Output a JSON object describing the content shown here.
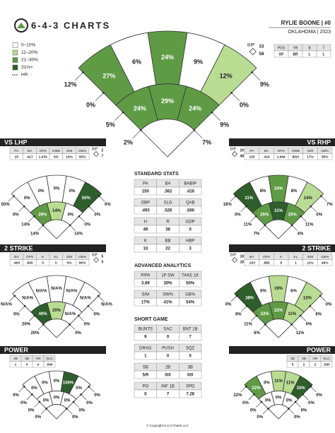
{
  "header": {
    "logo": "6-4-3 CHARTS",
    "player": "RYLIE BOONE | #0",
    "team": "OKLAHOMA | 2023"
  },
  "legend": [
    {
      "label": "0–10%",
      "color": "#ffffff"
    },
    {
      "label": "11–20%",
      "color": "#b9dc93"
    },
    {
      "label": "21–30%",
      "color": "#5f9b45"
    },
    {
      "label": "31%+",
      "color": "#2e5e2b"
    },
    {
      "label": "HR"
    }
  ],
  "bip_label": "BIP",
  "bip": [
    "33",
    "58"
  ],
  "profile": {
    "headers": [
      "POS",
      "YR",
      "B",
      "T"
    ],
    "values": [
      "OF",
      "BR",
      "L",
      "L"
    ]
  },
  "spray": {
    "outer": [
      "27%",
      "6%",
      "24%",
      "9%",
      "12%"
    ],
    "outer_colors": [
      "#5f9b45",
      "#ffffff",
      "#5f9b45",
      "#ffffff",
      "#b9dc93"
    ],
    "inner": [
      "24%",
      "29%",
      "24%"
    ],
    "inner_colors": [
      "#5f9b45",
      "#5f9b45",
      "#5f9b45"
    ],
    "ground": [
      "12%",
      "0%",
      "5%",
      "2%",
      "7%",
      "9%",
      "0%",
      "9%"
    ]
  },
  "panels": [
    {
      "title": "VS LHP",
      "bip": [
        "2",
        "7"
      ],
      "headers": [
        "PA",
        "BA",
        "OPS",
        "K/BB",
        "S/M",
        "GB%"
      ],
      "values": [
        "15",
        ".417",
        "1.033",
        "0/2",
        "14%",
        "55%"
      ],
      "spray": {
        "outer": [
          "0%",
          "0%",
          "0%",
          "0%",
          "50%"
        ],
        "outer_colors": [
          "#ffffff",
          "#ffffff",
          "#ffffff",
          "#ffffff",
          "#2e5e2b"
        ],
        "inner": [
          "29%",
          "14%",
          "0%"
        ],
        "inner_colors": [
          "#5f9b45",
          "#b9dc93",
          "#ffffff"
        ],
        "ground": [
          "50%",
          "0%",
          "14%",
          "14%",
          "14%",
          "0%",
          "0%",
          "0%"
        ]
      }
    },
    {
      "title": "2 STRIKE",
      "bip": [
        "5",
        "5"
      ],
      "headers": [
        "BA",
        "OPS",
        "K",
        "KL",
        "S/M",
        "GB%"
      ],
      "values": [
        ".400",
        ".800",
        "0",
        "0",
        "0%",
        "80%"
      ],
      "spray": {
        "outer": [
          "N/A%",
          "N/A%",
          "N/A%",
          "N/A%",
          "N/A%"
        ],
        "outer_colors": [
          "#ffffff",
          "#ffffff",
          "#ffffff",
          "#ffffff",
          "#ffffff"
        ],
        "inner": [
          "40%",
          "20%",
          "N/A%"
        ],
        "inner_colors": [
          "#2e5e2b",
          "#b9dc93",
          "#ffffff"
        ],
        "ground": [
          "N/A%",
          "0%",
          "20%",
          "20%",
          "0%",
          "0%",
          "0%",
          "N/A%"
        ]
      }
    },
    {
      "title": "POWER",
      "headers": [
        "2B",
        "3B",
        "HR",
        "SLG"
      ],
      "values": [
        "1",
        "0",
        "0",
        ".500"
      ],
      "spray": {
        "outer": [
          "0%",
          "0%",
          "0%",
          "100%",
          "0%"
        ],
        "outer_colors": [
          "#ffffff",
          "#ffffff",
          "#ffffff",
          "#2e5e2b",
          "#ffffff"
        ],
        "inner": [
          "0%",
          "0%",
          "0%"
        ],
        "inner_colors": [
          "#ffffff",
          "#ffffff",
          "#ffffff"
        ],
        "ground": [
          "0%",
          "0%",
          "0%",
          "0%",
          "0%",
          "0%",
          "0%",
          "0%"
        ]
      }
    },
    {
      "title": "VS RHP",
      "bip": [
        "29",
        "48"
      ],
      "headers": [
        "PA",
        "BA",
        "OPS",
        "K/BB",
        "S/M",
        "GB%"
      ],
      "values": [
        "135",
        ".410",
        "1.064",
        "8/20",
        "17%",
        "55%"
      ],
      "spray": {
        "outer": [
          "31%",
          "8%",
          "24%",
          "8%",
          "14%"
        ],
        "outer_colors": [
          "#2e5e2b",
          "#ffffff",
          "#5f9b45",
          "#ffffff",
          "#b9dc93"
        ],
        "inner": [
          "25%",
          "31%",
          "25%"
        ],
        "inner_colors": [
          "#5f9b45",
          "#2e5e2b",
          "#5f9b45"
        ],
        "ground": [
          "18%",
          "0%",
          "11%",
          "7%",
          "4%",
          "11%",
          "0%",
          "7%"
        ]
      }
    },
    {
      "title": "2 STRIKE",
      "bip": [
        "18",
        "18"
      ],
      "headers": [
        "BA",
        "OPS",
        "K",
        "KL",
        "S/M",
        "GB%"
      ],
      "values": [
        ".333",
        ".882",
        "8",
        "1",
        "11%",
        "49%"
      ],
      "spray": {
        "outer": [
          "38%",
          "6%",
          "19%",
          "6%",
          "12%"
        ],
        "outer_colors": [
          "#2e5e2b",
          "#ffffff",
          "#b9dc93",
          "#ffffff",
          "#b9dc93"
        ],
        "inner": [
          "22%",
          "22%",
          "11%"
        ],
        "inner_colors": [
          "#5f9b45",
          "#5f9b45",
          "#b9dc93"
        ],
        "ground": [
          "0%",
          "6%",
          "11%",
          "6%",
          "11%",
          "0%",
          "6%",
          "0%"
        ]
      }
    },
    {
      "title": "POWER",
      "headers": [
        "2B",
        "3B",
        "HR",
        "SLG"
      ],
      "values": [
        "5",
        "2",
        "2",
        ".583"
      ],
      "spray": {
        "outer": [
          "22%",
          "0%",
          "11%",
          "11%",
          "33%"
        ],
        "outer_colors": [
          "#5f9b45",
          "#ffffff",
          "#b9dc93",
          "#b9dc93",
          "#2e5e2b"
        ],
        "inner": [
          "0%",
          "0%",
          "0%"
        ],
        "inner_colors": [
          "#ffffff",
          "#ffffff",
          "#ffffff"
        ],
        "ground": [
          "22%",
          "0%",
          "0%",
          "0%",
          "0%",
          "0%",
          "0%",
          "0%"
        ]
      }
    }
  ],
  "stats": [
    {
      "title": "STANDARD STATS",
      "rows": [
        {
          "h": [
            "PA",
            "BA",
            "BABIP"
          ],
          "v": [
            "150",
            ".362",
            ".416"
          ]
        },
        {
          "h": [
            "OBP",
            "SLG",
            "QAB"
          ],
          "v": [
            ".493",
            ".526",
            ".560"
          ]
        },
        {
          "h": [
            "H",
            "R",
            "GDP"
          ],
          "v": [
            "49",
            "38",
            "0"
          ]
        },
        {
          "h": [
            "K",
            "BB",
            "HBP"
          ],
          "v": [
            "10",
            "22",
            "3"
          ]
        }
      ]
    },
    {
      "title": "ADVANCED ANALYTICS",
      "rows": [
        {
          "h": [
            "P/PA",
            "1P SW",
            "TAKE 1K"
          ],
          "v": [
            "3.89",
            "30%",
            "50%"
          ]
        },
        {
          "h": [
            "S/M",
            "SW%",
            "GB%"
          ],
          "v": [
            "17%",
            "41%",
            "54%"
          ]
        }
      ]
    },
    {
      "title": "SHORT GAME",
      "rows": [
        {
          "h": [
            "BUNTS",
            "SAC",
            "BNT 1B"
          ],
          "v": [
            "9",
            "0",
            "7"
          ]
        },
        {
          "h": [
            "DRAG",
            "PUSH",
            "SQZ"
          ],
          "v": [
            "1",
            "0",
            "0"
          ]
        },
        {
          "h": [
            "SB",
            "2B",
            "3B"
          ],
          "v": [
            "5/9",
            "0/0",
            "0/0"
          ]
        },
        {
          "h": [
            "PO",
            "INF 1B",
            "SPD"
          ],
          "v": [
            "0",
            "7",
            "7.28"
          ]
        }
      ]
    }
  ],
  "footer": "© Copyright 6-4-3 Charts LLC"
}
